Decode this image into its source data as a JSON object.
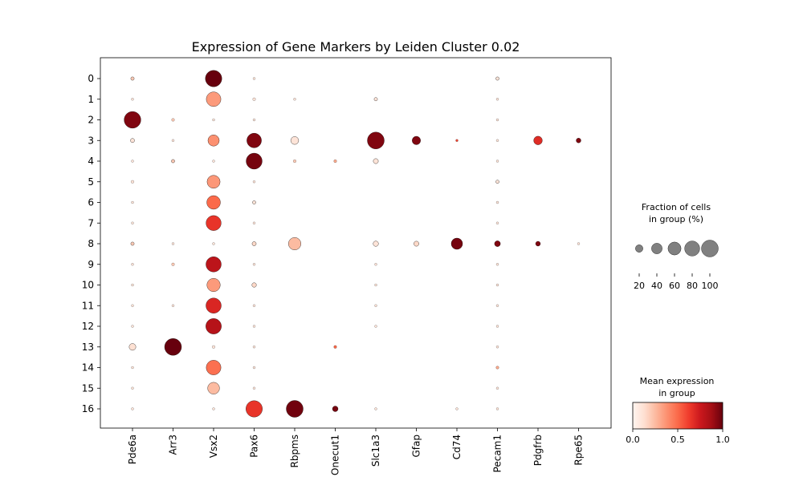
{
  "chart_data": {
    "type": "dotplot",
    "title": "Expression of Gene Markers by Leiden Cluster 0.02",
    "genes": [
      "Pde6a",
      "Arr3",
      "Vsx2",
      "Pax6",
      "Rbpms",
      "Onecut1",
      "Slc1a3",
      "Gfap",
      "Cd74",
      "Pecam1",
      "Pdgfrb",
      "Rpe65"
    ],
    "clusters": [
      "0",
      "1",
      "2",
      "3",
      "4",
      "5",
      "6",
      "7",
      "8",
      "9",
      "10",
      "11",
      "12",
      "13",
      "14",
      "15",
      "16"
    ],
    "fraction_pct": [
      [
        4,
        0,
        95,
        2,
        0,
        0,
        0,
        0,
        0,
        4,
        0,
        0
      ],
      [
        2,
        0,
        75,
        3,
        2,
        0,
        4,
        0,
        0,
        2,
        0,
        0
      ],
      [
        98,
        3,
        2,
        2,
        0,
        0,
        0,
        0,
        0,
        2,
        0,
        0
      ],
      [
        6,
        2,
        45,
        75,
        22,
        0,
        100,
        25,
        2,
        2,
        26,
        8
      ],
      [
        2,
        4,
        2,
        90,
        3,
        3,
        9,
        0,
        0,
        2,
        0,
        0
      ],
      [
        3,
        0,
        60,
        2,
        0,
        0,
        0,
        0,
        0,
        4,
        0,
        0
      ],
      [
        2,
        0,
        65,
        4,
        0,
        0,
        0,
        0,
        0,
        2,
        0,
        0
      ],
      [
        2,
        0,
        80,
        2,
        0,
        0,
        0,
        0,
        0,
        2,
        0,
        0
      ],
      [
        4,
        2,
        2,
        6,
        55,
        0,
        10,
        9,
        45,
        12,
        8,
        2
      ],
      [
        2,
        3,
        82,
        2,
        0,
        0,
        2,
        0,
        0,
        2,
        0,
        0
      ],
      [
        2,
        0,
        62,
        7,
        0,
        0,
        2,
        0,
        0,
        2,
        0,
        0
      ],
      [
        2,
        2,
        82,
        2,
        0,
        0,
        2,
        0,
        0,
        2,
        0,
        0
      ],
      [
        2,
        0,
        85,
        2,
        0,
        0,
        2,
        0,
        0,
        2,
        0,
        0
      ],
      [
        16,
        100,
        3,
        2,
        0,
        3,
        0,
        0,
        0,
        2,
        0,
        0
      ],
      [
        2,
        0,
        76,
        2,
        0,
        0,
        0,
        0,
        0,
        3,
        0,
        0
      ],
      [
        2,
        0,
        50,
        2,
        0,
        0,
        0,
        0,
        0,
        2,
        0,
        0
      ],
      [
        2,
        0,
        2,
        95,
        100,
        11,
        2,
        0,
        2,
        2,
        0,
        0
      ]
    ],
    "mean_expression": [
      [
        0.2,
        0,
        1.0,
        0.1,
        0,
        0,
        0,
        0,
        0,
        0.1,
        0,
        0
      ],
      [
        0.1,
        0,
        0.35,
        0.1,
        0.1,
        0,
        0.1,
        0,
        0,
        0.1,
        0,
        0
      ],
      [
        0.95,
        0.2,
        0.1,
        0.1,
        0,
        0,
        0,
        0,
        0,
        0.1,
        0,
        0
      ],
      [
        0.1,
        0.1,
        0.38,
        0.95,
        0.1,
        0,
        0.95,
        0.95,
        0.6,
        0.1,
        0.68,
        0.95
      ],
      [
        0.1,
        0.2,
        0.1,
        0.97,
        0.2,
        0.3,
        0.1,
        0,
        0,
        0.1,
        0,
        0
      ],
      [
        0.1,
        0,
        0.36,
        0.1,
        0,
        0,
        0,
        0,
        0,
        0.1,
        0,
        0
      ],
      [
        0.1,
        0,
        0.5,
        0.1,
        0,
        0,
        0,
        0,
        0,
        0.1,
        0,
        0
      ],
      [
        0.1,
        0,
        0.65,
        0.1,
        0,
        0,
        0,
        0,
        0,
        0.1,
        0,
        0
      ],
      [
        0.2,
        0.1,
        0.1,
        0.15,
        0.25,
        0,
        0.1,
        0.15,
        0.97,
        0.95,
        0.95,
        0.1
      ],
      [
        0.1,
        0.2,
        0.8,
        0.1,
        0,
        0,
        0.1,
        0,
        0,
        0.1,
        0,
        0
      ],
      [
        0.1,
        0,
        0.35,
        0.15,
        0,
        0,
        0.1,
        0,
        0,
        0.1,
        0,
        0
      ],
      [
        0.1,
        0.1,
        0.7,
        0.1,
        0,
        0,
        0.1,
        0,
        0,
        0.1,
        0,
        0
      ],
      [
        0.1,
        0,
        0.82,
        0.1,
        0,
        0,
        0.1,
        0,
        0,
        0.1,
        0,
        0
      ],
      [
        0.12,
        1.0,
        0.1,
        0.1,
        0,
        0.5,
        0,
        0,
        0,
        0.1,
        0,
        0
      ],
      [
        0.1,
        0,
        0.48,
        0.1,
        0,
        0,
        0,
        0,
        0,
        0.3,
        0,
        0
      ],
      [
        0.1,
        0,
        0.25,
        0.1,
        0,
        0,
        0,
        0,
        0,
        0.1,
        0,
        0
      ],
      [
        0.1,
        0,
        0.1,
        0.65,
        0.98,
        0.97,
        0.1,
        0,
        0.1,
        0.1,
        0,
        0
      ]
    ],
    "size_legend": {
      "title_line1": "Fraction of cells",
      "title_line2": "in group (%)",
      "ticks": [
        "20",
        "40",
        "60",
        "80",
        "100"
      ],
      "values": [
        20,
        40,
        60,
        80,
        100
      ]
    },
    "color_legend": {
      "title_line1": "Mean expression",
      "title_line2": "in group",
      "ticks": [
        "0.0",
        "0.5",
        "1.0"
      ],
      "values": [
        0,
        0.5,
        1.0
      ],
      "colormap": "Reds",
      "colors": [
        "#fff5f0",
        "#fcbba1",
        "#fb6a4a",
        "#cb181d",
        "#67000d"
      ]
    },
    "grid": false
  }
}
